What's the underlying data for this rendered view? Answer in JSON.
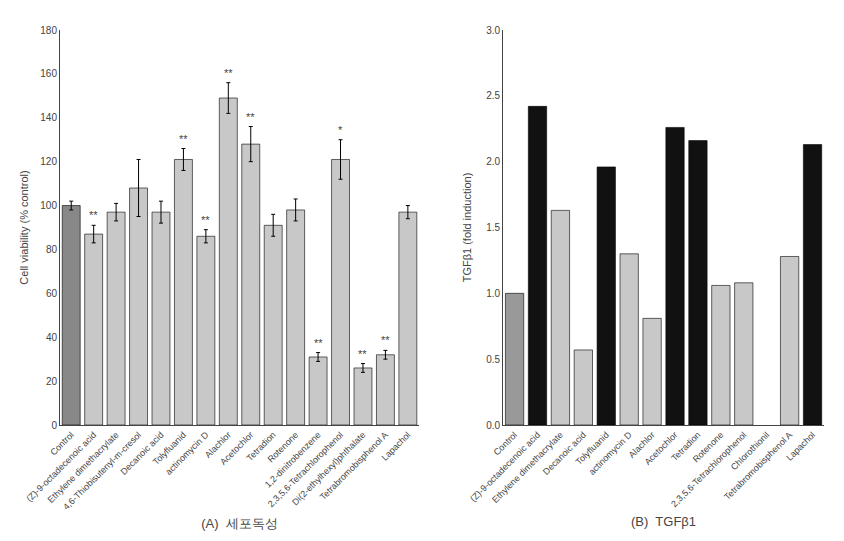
{
  "chart_data": [
    {
      "type": "bar",
      "subtitle": "(A)  세포독성",
      "categories": [
        "Control",
        "(Z)-9-octadecenoic acid",
        "Ethylene dimethacrylate",
        "4,6-Thiobisutenyl-m-cresol",
        "Decanoic acid",
        "Tolyfluanid",
        "actinomycin D",
        "Alachlor",
        "Acetochlor",
        "Tetradion",
        "Rotenone",
        "1,2-dinitrobenzene",
        "2,3,5,6-Tetrachlorophenol",
        "Di(2-ethylhexyl)phthalate",
        "Tetrabromobisphenol A",
        "Lapachol"
      ],
      "values": [
        100,
        87,
        97,
        108,
        97,
        121,
        86,
        149,
        128,
        91,
        98,
        31,
        121,
        26,
        32,
        97
      ],
      "errors": [
        2,
        4,
        4,
        13,
        5,
        5,
        3,
        7,
        8,
        5,
        5,
        2,
        9,
        2,
        2,
        3
      ],
      "colors": [
        "#888888",
        "#c8c8c8",
        "#c8c8c8",
        "#c8c8c8",
        "#c8c8c8",
        "#c8c8c8",
        "#c8c8c8",
        "#c8c8c8",
        "#c8c8c8",
        "#c8c8c8",
        "#c8c8c8",
        "#c8c8c8",
        "#c8c8c8",
        "#c8c8c8",
        "#c8c8c8",
        "#c8c8c8"
      ],
      "annotations": [
        {
          "category": "(Z)-9-octadecenoic acid",
          "text": "**"
        },
        {
          "category": "Tolyfluanid",
          "text": "**"
        },
        {
          "category": "actinomycin D",
          "text": "**"
        },
        {
          "category": "Alachlor",
          "text": "**"
        },
        {
          "category": "Acetochlor",
          "text": "**"
        },
        {
          "category": "1,2-dinitrobenzene",
          "text": "**"
        },
        {
          "category": "2,3,5,6-Tetrachlorophenol",
          "text": "*"
        },
        {
          "category": "Di(2-ethylhexyl)phthalate",
          "text": "**"
        },
        {
          "category": "Tetrabromobisphenol A",
          "text": "**"
        }
      ],
      "ylabel": "Cell viability (% control)",
      "ylim": [
        0,
        180
      ],
      "yticks": [
        0,
        20,
        40,
        60,
        80,
        100,
        120,
        140,
        160,
        180
      ],
      "grid": false
    },
    {
      "type": "bar",
      "subtitle": "(B)  TGFβ1",
      "categories": [
        "Control",
        "(Z)-9-octadecenoic acid",
        "Ethylene dimethacrylate",
        "Decanoic acid",
        "Tolyfluanid",
        "actinomycin D",
        "Alachlor",
        "Acetochlor",
        "Tetradion",
        "Rotenone",
        "2,3,5,6-Tetrachlorophenol",
        "Chlorothionil",
        "Tetrabromobisphenol A",
        "Lapachol"
      ],
      "values": [
        1.0,
        2.42,
        1.63,
        0.57,
        1.96,
        1.3,
        0.81,
        2.26,
        2.16,
        1.06,
        1.08,
        null,
        1.28,
        2.13
      ],
      "colors": [
        "#999999",
        "#111111",
        "#c8c8c8",
        "#c8c8c8",
        "#111111",
        "#c8c8c8",
        "#c8c8c8",
        "#111111",
        "#111111",
        "#c8c8c8",
        "#c8c8c8",
        null,
        "#c8c8c8",
        "#111111"
      ],
      "ylabel": "TGFβ1 (fold induction)",
      "ylim": [
        0,
        3.0
      ],
      "yticks": [
        {
          "value": 0,
          "label": "0.0"
        },
        0.5,
        {
          "value": 1,
          "label": "1.0"
        },
        1.5,
        {
          "value": 2,
          "label": "2.0"
        },
        2.5,
        {
          "value": 3,
          "label": "3.0"
        }
      ],
      "grid": false
    }
  ]
}
